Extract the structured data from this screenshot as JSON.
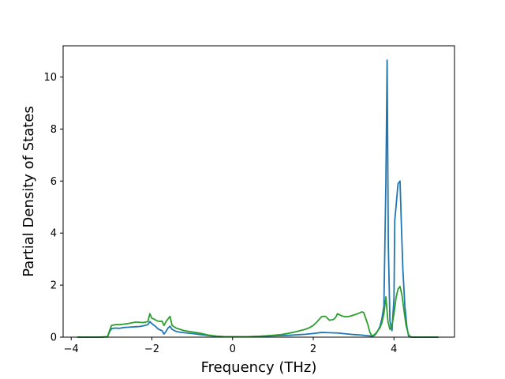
{
  "chart_data": {
    "type": "line",
    "title": "",
    "xlabel": "Frequency (THz)",
    "ylabel": "Partial Density of States",
    "xlim": [
      -4.2,
      5.5
    ],
    "ylim": [
      0,
      11.2
    ],
    "xticks": [
      -4,
      -2,
      0,
      2,
      4
    ],
    "yticks": [
      0,
      2,
      4,
      6,
      8,
      10
    ],
    "grid": false,
    "legend": "none",
    "series": [
      {
        "color": "#1f77b4",
        "x": [
          -3.85,
          -3.6,
          -3.3,
          -3.1,
          -3.05,
          -3.0,
          -2.9,
          -2.8,
          -2.7,
          -2.6,
          -2.5,
          -2.4,
          -2.3,
          -2.2,
          -2.1,
          -2.05,
          -2.0,
          -1.95,
          -1.9,
          -1.85,
          -1.8,
          -1.75,
          -1.7,
          -1.65,
          -1.6,
          -1.55,
          -1.5,
          -1.4,
          -1.3,
          -1.2,
          -1.0,
          -0.8,
          -0.6,
          -0.4,
          -0.2,
          0.0,
          0.2,
          0.4,
          0.6,
          0.8,
          1.0,
          1.2,
          1.4,
          1.6,
          1.8,
          2.0,
          2.2,
          2.4,
          2.6,
          2.8,
          3.0,
          3.1,
          3.2,
          3.3,
          3.4,
          3.45,
          3.5,
          3.55,
          3.6,
          3.65,
          3.7,
          3.75,
          3.8,
          3.83,
          3.86,
          3.9,
          3.95,
          4.0,
          4.02,
          4.05,
          4.1,
          4.15,
          4.18,
          4.22,
          4.27,
          4.32,
          4.36,
          4.42,
          4.6,
          4.8,
          5.1
        ],
        "values": [
          0,
          0,
          0,
          0.01,
          0.2,
          0.33,
          0.35,
          0.34,
          0.37,
          0.38,
          0.39,
          0.4,
          0.41,
          0.44,
          0.48,
          0.6,
          0.52,
          0.46,
          0.4,
          0.32,
          0.28,
          0.25,
          0.12,
          0.22,
          0.35,
          0.42,
          0.3,
          0.22,
          0.19,
          0.17,
          0.14,
          0.1,
          0.06,
          0.03,
          0.02,
          0.02,
          0.02,
          0.02,
          0.03,
          0.04,
          0.05,
          0.06,
          0.07,
          0.09,
          0.11,
          0.14,
          0.18,
          0.17,
          0.16,
          0.13,
          0.1,
          0.09,
          0.08,
          0.06,
          0.05,
          0.04,
          0.05,
          0.12,
          0.25,
          0.4,
          0.7,
          1.2,
          6.0,
          10.65,
          3.5,
          0.6,
          0.25,
          1.5,
          4.5,
          5.0,
          5.9,
          6.0,
          4.5,
          2.6,
          1.2,
          0.4,
          0.05,
          0,
          0,
          0,
          0
        ]
      },
      {
        "color": "#2ca02c",
        "x": [
          -3.85,
          -3.6,
          -3.3,
          -3.1,
          -3.05,
          -3.0,
          -2.9,
          -2.8,
          -2.7,
          -2.6,
          -2.5,
          -2.4,
          -2.3,
          -2.2,
          -2.1,
          -2.05,
          -2.0,
          -1.95,
          -1.9,
          -1.85,
          -1.8,
          -1.75,
          -1.7,
          -1.65,
          -1.6,
          -1.55,
          -1.5,
          -1.4,
          -1.3,
          -1.2,
          -1.0,
          -0.8,
          -0.6,
          -0.4,
          -0.2,
          0.0,
          0.2,
          0.4,
          0.6,
          0.8,
          1.0,
          1.2,
          1.4,
          1.6,
          1.8,
          1.9,
          2.0,
          2.1,
          2.2,
          2.25,
          2.3,
          2.4,
          2.5,
          2.55,
          2.6,
          2.7,
          2.8,
          2.9,
          3.0,
          3.1,
          3.2,
          3.25,
          3.3,
          3.35,
          3.4,
          3.45,
          3.5,
          3.55,
          3.6,
          3.65,
          3.7,
          3.75,
          3.8,
          3.85,
          3.9,
          3.95,
          4.0,
          4.05,
          4.1,
          4.15,
          4.2,
          4.25,
          4.3,
          4.36,
          4.42,
          4.6,
          4.8,
          5.1
        ],
        "values": [
          0,
          0,
          0,
          0.02,
          0.25,
          0.45,
          0.48,
          0.48,
          0.5,
          0.52,
          0.55,
          0.58,
          0.57,
          0.56,
          0.6,
          0.9,
          0.72,
          0.7,
          0.65,
          0.62,
          0.6,
          0.62,
          0.45,
          0.6,
          0.7,
          0.8,
          0.45,
          0.35,
          0.3,
          0.25,
          0.2,
          0.15,
          0.08,
          0.04,
          0.02,
          0.02,
          0.02,
          0.02,
          0.03,
          0.05,
          0.07,
          0.1,
          0.15,
          0.22,
          0.3,
          0.36,
          0.45,
          0.6,
          0.78,
          0.8,
          0.8,
          0.65,
          0.68,
          0.75,
          0.9,
          0.82,
          0.78,
          0.8,
          0.85,
          0.9,
          0.97,
          0.95,
          0.72,
          0.5,
          0.2,
          0.05,
          0.08,
          0.15,
          0.25,
          0.35,
          0.55,
          0.9,
          1.55,
          0.6,
          0.3,
          0.45,
          0.9,
          1.5,
          1.85,
          1.95,
          1.6,
          1.0,
          0.45,
          0.1,
          0,
          0,
          0,
          0
        ]
      }
    ]
  }
}
